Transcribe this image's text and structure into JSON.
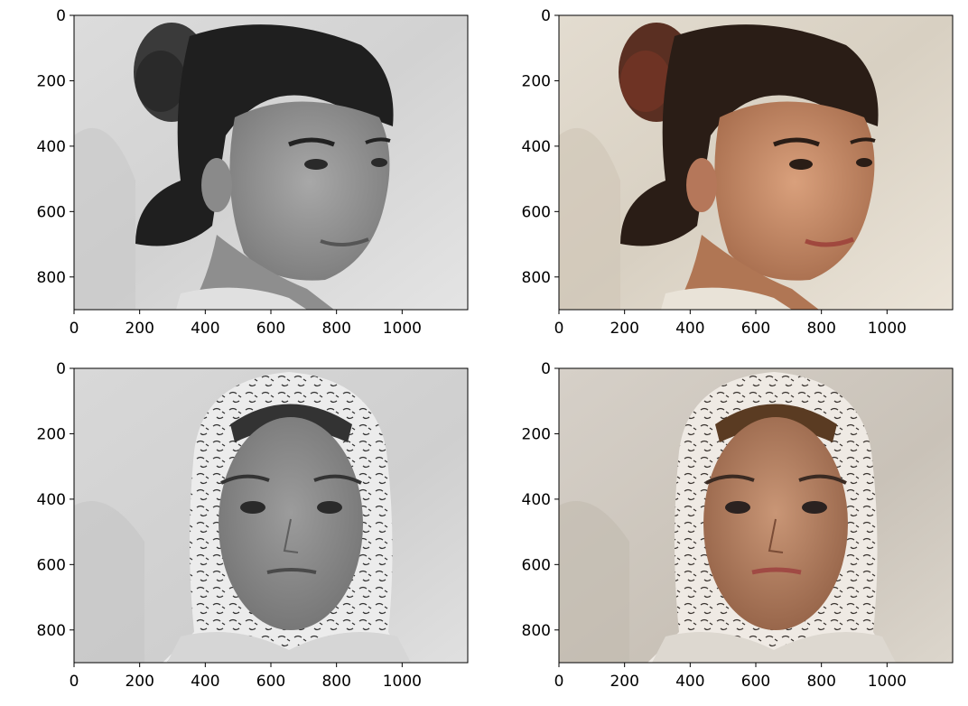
{
  "figure": {
    "background": "#ffffff",
    "panel_grid": "2x2"
  },
  "chart_data": [
    {
      "type": "image",
      "panel": "top-left",
      "content": "portrait-woman-profile",
      "colormap": "grayscale",
      "xlim": [
        0,
        1200
      ],
      "ylim": [
        900,
        0
      ],
      "x_ticks": [
        0,
        200,
        400,
        600,
        800,
        1000
      ],
      "y_ticks": [
        0,
        200,
        400,
        600,
        800
      ]
    },
    {
      "type": "image",
      "panel": "top-right",
      "content": "portrait-woman-profile",
      "colormap": "color",
      "xlim": [
        0,
        1200
      ],
      "ylim": [
        900,
        0
      ],
      "x_ticks": [
        0,
        200,
        400,
        600,
        800,
        1000
      ],
      "y_ticks": [
        0,
        200,
        400,
        600,
        800
      ]
    },
    {
      "type": "image",
      "panel": "bottom-left",
      "content": "portrait-woman-headscarf-frontal",
      "colormap": "grayscale",
      "xlim": [
        0,
        1200
      ],
      "ylim": [
        900,
        0
      ],
      "x_ticks": [
        0,
        200,
        400,
        600,
        800,
        1000
      ],
      "y_ticks": [
        0,
        200,
        400,
        600,
        800
      ]
    },
    {
      "type": "image",
      "panel": "bottom-right",
      "content": "portrait-woman-headscarf-frontal",
      "colormap": "color",
      "xlim": [
        0,
        1200
      ],
      "ylim": [
        900,
        0
      ],
      "x_ticks": [
        0,
        200,
        400,
        600,
        800,
        1000
      ],
      "y_ticks": [
        0,
        200,
        400,
        600,
        800
      ]
    }
  ]
}
